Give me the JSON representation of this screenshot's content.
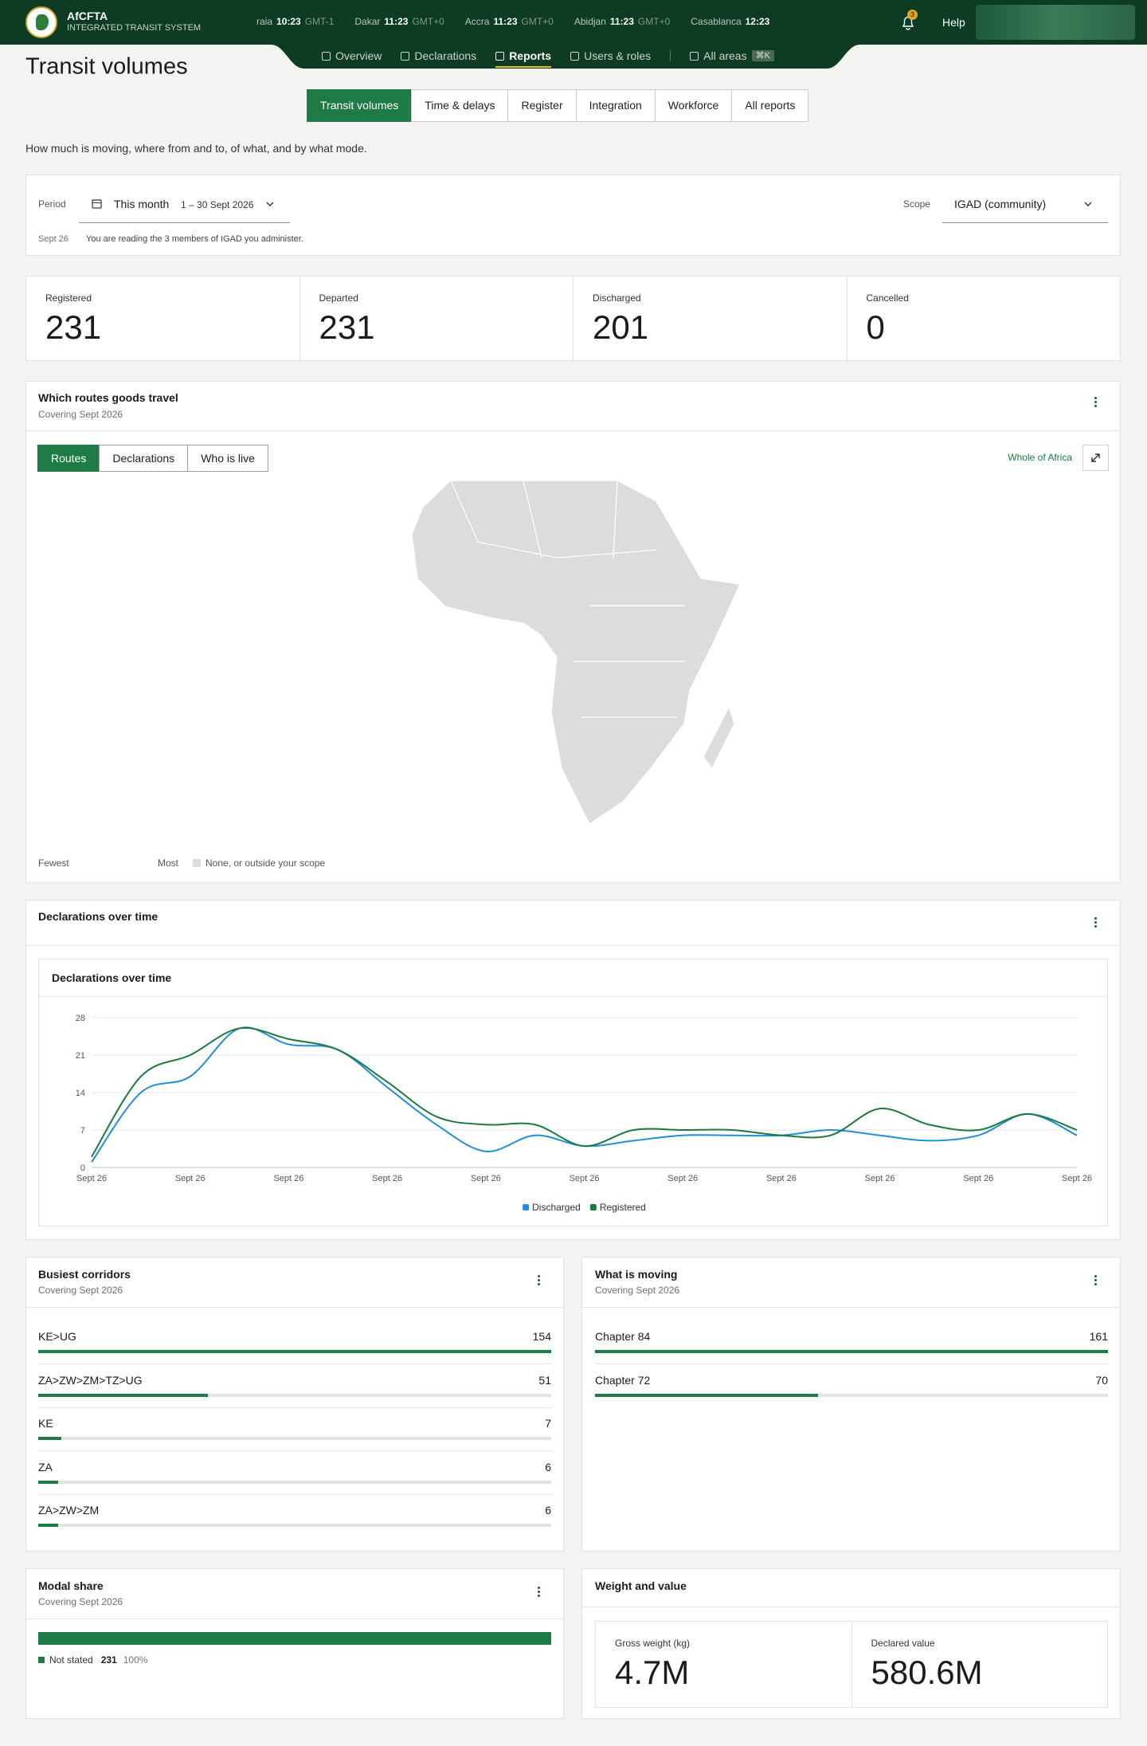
{
  "header": {
    "brand": "AfCFTA",
    "subtitle": "INTEGRATED TRANSIT SYSTEM",
    "clocks": [
      {
        "city": "raia",
        "time": "10:23",
        "zone": "GMT-1"
      },
      {
        "city": "Dakar",
        "time": "11:23",
        "zone": "GMT+0"
      },
      {
        "city": "Accra",
        "time": "11:23",
        "zone": "GMT+0"
      },
      {
        "city": "Abidjan",
        "time": "11:23",
        "zone": "GMT+0"
      },
      {
        "city": "Casablanca",
        "time": "12:23"
      }
    ],
    "notifications": 3,
    "help": "Help",
    "nav": [
      {
        "label": "Overview"
      },
      {
        "label": "Declarations"
      },
      {
        "label": "Reports"
      },
      {
        "label": "Users & roles"
      },
      {
        "label": "All areas",
        "shortcut": "⌘K"
      }
    ],
    "active_nav": 2
  },
  "page": {
    "title": "Transit volumes",
    "tabs": [
      "Transit volumes",
      "Time & delays",
      "Register",
      "Integration",
      "Workforce",
      "All reports"
    ],
    "active_tab": 0,
    "description": "How much is moving, where from and to, of what, and by what mode."
  },
  "filters": {
    "period_label": "Period",
    "period": "This month",
    "period_range": "1 – 30 Sept 2026",
    "scope_label": "Scope",
    "scope": "IGAD (community)",
    "note_date": "Sept 26",
    "note": "You are reading the 3 members of IGAD you administer."
  },
  "kpis": [
    {
      "label": "Registered",
      "value": 231
    },
    {
      "label": "Departed",
      "value": 231
    },
    {
      "label": "Discharged",
      "value": 201
    },
    {
      "label": "Cancelled",
      "value": 0
    }
  ],
  "map_panel": {
    "title": "Which routes goods travel",
    "subtitle": "Covering Sept 2026",
    "tabs": [
      "Routes",
      "Declarations",
      "Who is live"
    ],
    "active_tab": 0,
    "zoom": "Whole of Africa",
    "legend": {
      "low": "Fewest",
      "high": "Most",
      "none": "None, or outside your scope"
    }
  },
  "declarations_panel": {
    "title": "Declarations over time"
  },
  "chart_data": {
    "type": "line",
    "title": "Declarations over time",
    "categories": [
      "Sept 26",
      null,
      "Sept 26",
      null,
      "Sept 26",
      null,
      "Sept 26",
      null,
      "Sept 26",
      null,
      "Sept 26",
      null,
      "Sept 26",
      null,
      "Sept 26",
      null,
      "Sept 26",
      null,
      "Sept 26",
      null,
      "Sept 26"
    ],
    "series": [
      {
        "name": "Discharged",
        "color": "#1e8fd8",
        "values": [
          1,
          14,
          17,
          26,
          23,
          22,
          15,
          8,
          3,
          6,
          4,
          5,
          6,
          6,
          6,
          7,
          6,
          5,
          6,
          10,
          6
        ]
      },
      {
        "name": "Registered",
        "color": "#1b7a3e",
        "values": [
          2,
          17,
          21,
          26,
          24,
          22,
          16,
          9.5,
          8,
          8,
          4,
          7,
          7,
          7,
          6,
          6,
          11,
          8,
          7,
          10,
          7
        ]
      }
    ],
    "ylim": [
      0,
      28
    ],
    "yticks": [
      0,
      7,
      14,
      21,
      28
    ],
    "grid": true,
    "legend": "bottom"
  },
  "corridors": {
    "title": "Busiest corridors",
    "subtitle": "Covering Sept 2026",
    "items": [
      {
        "label": "KE>UG",
        "value": 154
      },
      {
        "label": "ZA>ZW>ZM>TZ>UG",
        "value": 51
      },
      {
        "label": "KE",
        "value": 7
      },
      {
        "label": "ZA",
        "value": 6
      },
      {
        "label": "ZA>ZW>ZM",
        "value": 6
      }
    ]
  },
  "commodities": {
    "title": "What is moving",
    "subtitle": "Covering Sept 2026",
    "items": [
      {
        "label": "Chapter 84",
        "value": 161
      },
      {
        "label": "Chapter 72",
        "value": 70
      }
    ]
  },
  "modal_share": {
    "title": "Modal share",
    "subtitle": "Covering Sept 2026",
    "items": [
      {
        "label": "Not stated",
        "value": 231,
        "share": 100,
        "share_label": "100%"
      }
    ]
  },
  "weight_value": {
    "title": "Weight and value",
    "items": [
      {
        "label": "Gross weight (kg)",
        "value": "4.7M"
      },
      {
        "label": "Declared value",
        "value": "580.6M"
      }
    ]
  }
}
